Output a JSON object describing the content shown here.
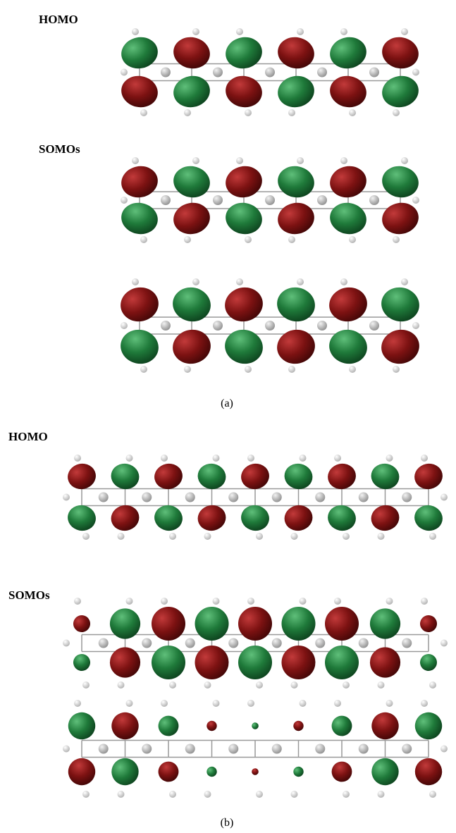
{
  "panel_a": {
    "homo_label": "HOMO",
    "somos_label": "SOMOs",
    "caption": "(a)"
  },
  "panel_b": {
    "homo_label": "HOMO",
    "somos_label": "SOMOs",
    "caption": "(b)"
  }
}
